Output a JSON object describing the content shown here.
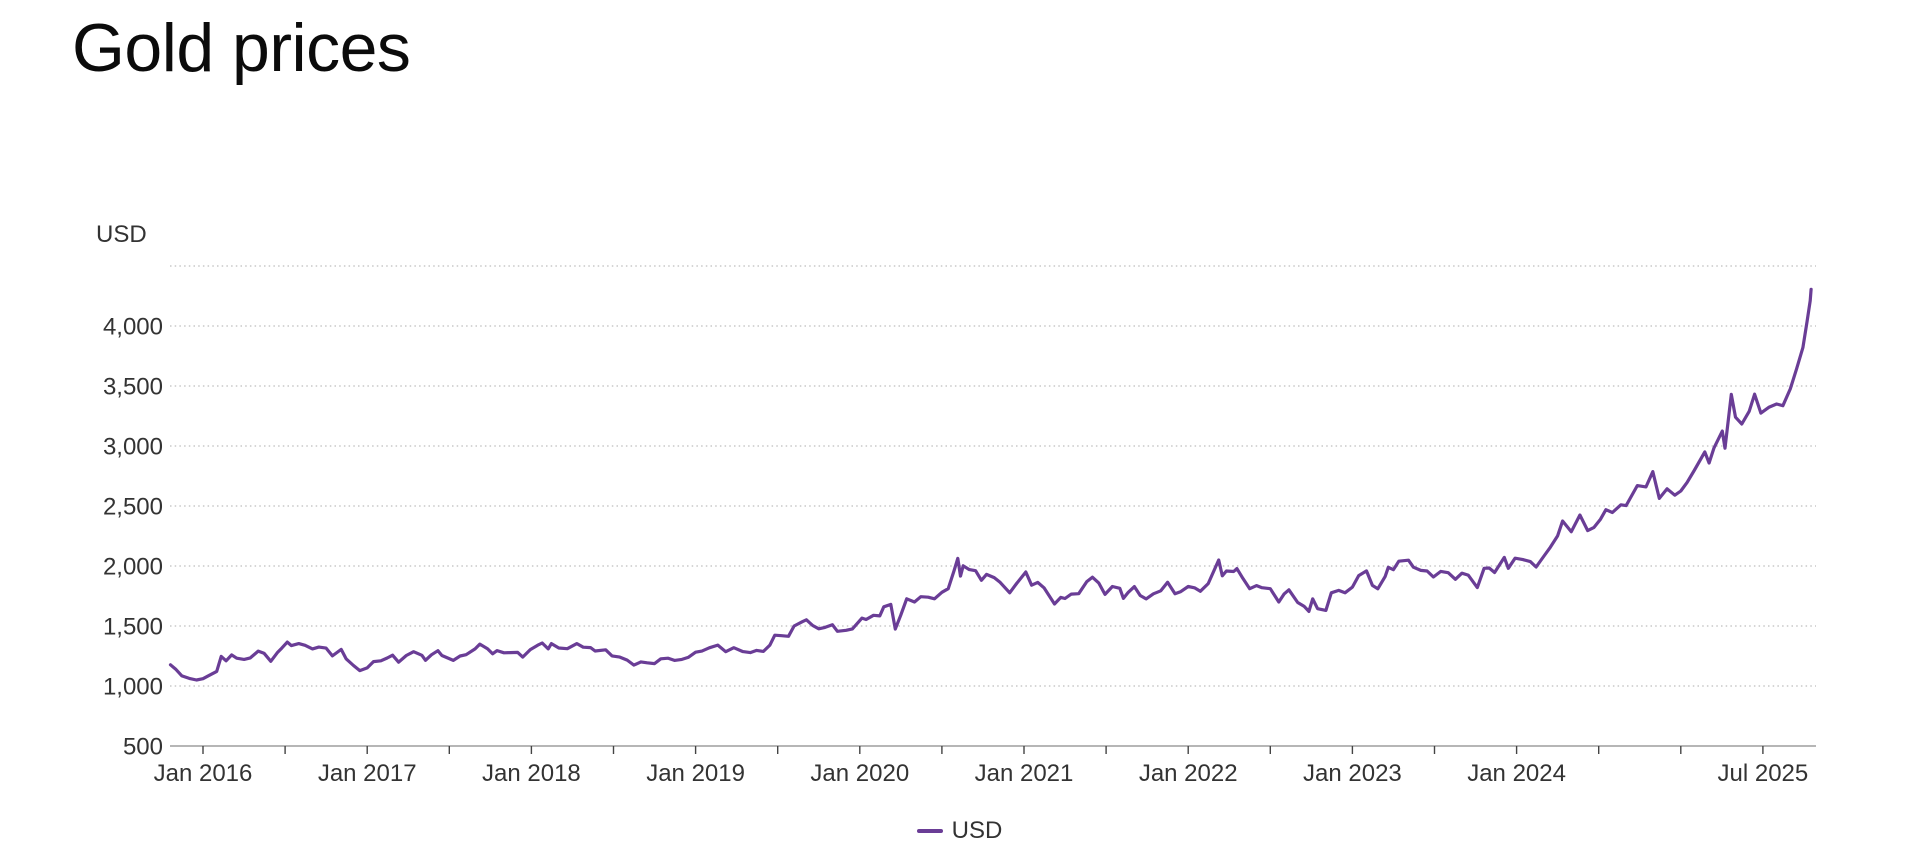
{
  "page": {
    "title": "Gold prices"
  },
  "axes": {
    "unit_label": "USD",
    "y_tick_labels": [
      {
        "label": "4,000",
        "value": 4000
      },
      {
        "label": "3,500",
        "value": 3500
      },
      {
        "label": "3,000",
        "value": 3000
      },
      {
        "label": "2,500",
        "value": 2500
      },
      {
        "label": "2,000",
        "value": 2000
      },
      {
        "label": "1,500",
        "value": 1500
      },
      {
        "label": "1,000",
        "value": 1000
      },
      {
        "label": "500",
        "value": 500
      }
    ],
    "x_tick_labels": [
      {
        "label": "Jan 2016",
        "date": "2016-01-01"
      },
      {
        "label": "Jan 2017",
        "date": "2017-01-01"
      },
      {
        "label": "Jan 2018",
        "date": "2018-01-01"
      },
      {
        "label": "Jan 2019",
        "date": "2019-01-01"
      },
      {
        "label": "Jan 2020",
        "date": "2020-01-01"
      },
      {
        "label": "Jan 2021",
        "date": "2021-01-01"
      },
      {
        "label": "Jan 2022",
        "date": "2022-01-01"
      },
      {
        "label": "Jan 2023",
        "date": "2023-01-01"
      },
      {
        "label": "Jan 2024",
        "date": "2024-01-01"
      },
      {
        "label": "Jul 2025",
        "date": "2025-07-01"
      }
    ]
  },
  "legend": {
    "label": "USD",
    "color": "#6a3d96"
  },
  "colors": {
    "line": "#6a3d96",
    "grid": "#bdbdbd",
    "axis_line": "#9e9e9e",
    "tick": "#444444",
    "label_text": "#333333",
    "title_text": "#0b0b0b"
  },
  "chart_data": {
    "type": "line",
    "title": "Gold prices",
    "xlabel": "",
    "ylabel": "USD",
    "ylim": [
      500,
      4500
    ],
    "grid": "dotted horizontal gridlines every 500, unlabeled top line at 4500, solid baseline at 500",
    "legend_position": "bottom-center",
    "legend_entries": [
      "USD"
    ],
    "x_range": [
      "2015-10-20",
      "2025-10-17"
    ],
    "minor_x_ticks": "every 6 months (Jan and Jul), 2016-01 through 2025-07",
    "series": [
      {
        "name": "USD",
        "color": "#6a3d96",
        "points": [
          [
            "2015-10-20",
            1177
          ],
          [
            "2015-11-01",
            1141
          ],
          [
            "2015-11-15",
            1084
          ],
          [
            "2015-12-01",
            1063
          ],
          [
            "2015-12-17",
            1050
          ],
          [
            "2016-01-01",
            1061
          ],
          [
            "2016-01-15",
            1089
          ],
          [
            "2016-02-01",
            1122
          ],
          [
            "2016-02-11",
            1247
          ],
          [
            "2016-02-22",
            1210
          ],
          [
            "2016-03-04",
            1259
          ],
          [
            "2016-03-15",
            1232
          ],
          [
            "2016-04-01",
            1222
          ],
          [
            "2016-04-15",
            1234
          ],
          [
            "2016-05-02",
            1291
          ],
          [
            "2016-05-15",
            1273
          ],
          [
            "2016-05-30",
            1206
          ],
          [
            "2016-06-15",
            1282
          ],
          [
            "2016-06-24",
            1316
          ],
          [
            "2016-07-06",
            1366
          ],
          [
            "2016-07-15",
            1337
          ],
          [
            "2016-08-01",
            1353
          ],
          [
            "2016-08-15",
            1339
          ],
          [
            "2016-09-01",
            1309
          ],
          [
            "2016-09-15",
            1324
          ],
          [
            "2016-10-01",
            1316
          ],
          [
            "2016-10-15",
            1251
          ],
          [
            "2016-11-04",
            1305
          ],
          [
            "2016-11-15",
            1227
          ],
          [
            "2016-12-01",
            1171
          ],
          [
            "2016-12-15",
            1128
          ],
          [
            "2017-01-01",
            1151
          ],
          [
            "2017-01-15",
            1203
          ],
          [
            "2017-02-01",
            1210
          ],
          [
            "2017-02-15",
            1233
          ],
          [
            "2017-02-27",
            1257
          ],
          [
            "2017-03-10",
            1198
          ],
          [
            "2017-03-27",
            1254
          ],
          [
            "2017-04-13",
            1286
          ],
          [
            "2017-05-01",
            1256
          ],
          [
            "2017-05-09",
            1214
          ],
          [
            "2017-05-22",
            1260
          ],
          [
            "2017-06-06",
            1294
          ],
          [
            "2017-06-15",
            1254
          ],
          [
            "2017-07-10",
            1213
          ],
          [
            "2017-07-25",
            1250
          ],
          [
            "2017-08-08",
            1261
          ],
          [
            "2017-08-28",
            1309
          ],
          [
            "2017-09-08",
            1349
          ],
          [
            "2017-09-25",
            1311
          ],
          [
            "2017-10-06",
            1268
          ],
          [
            "2017-10-16",
            1295
          ],
          [
            "2017-11-01",
            1277
          ],
          [
            "2017-11-15",
            1278
          ],
          [
            "2017-12-01",
            1280
          ],
          [
            "2017-12-12",
            1241
          ],
          [
            "2017-12-29",
            1303
          ],
          [
            "2018-01-15",
            1340
          ],
          [
            "2018-01-25",
            1358
          ],
          [
            "2018-02-08",
            1309
          ],
          [
            "2018-02-15",
            1353
          ],
          [
            "2018-03-01",
            1317
          ],
          [
            "2018-03-20",
            1311
          ],
          [
            "2018-04-11",
            1353
          ],
          [
            "2018-04-25",
            1323
          ],
          [
            "2018-05-11",
            1320
          ],
          [
            "2018-05-21",
            1292
          ],
          [
            "2018-06-14",
            1302
          ],
          [
            "2018-06-28",
            1251
          ],
          [
            "2018-07-15",
            1241
          ],
          [
            "2018-08-01",
            1216
          ],
          [
            "2018-08-16",
            1174
          ],
          [
            "2018-09-01",
            1201
          ],
          [
            "2018-09-15",
            1193
          ],
          [
            "2018-10-01",
            1187
          ],
          [
            "2018-10-15",
            1227
          ],
          [
            "2018-11-01",
            1232
          ],
          [
            "2018-11-15",
            1213
          ],
          [
            "2018-12-01",
            1222
          ],
          [
            "2018-12-15",
            1238
          ],
          [
            "2019-01-01",
            1282
          ],
          [
            "2019-01-15",
            1291
          ],
          [
            "2019-02-01",
            1318
          ],
          [
            "2019-02-20",
            1341
          ],
          [
            "2019-03-07",
            1286
          ],
          [
            "2019-03-25",
            1319
          ],
          [
            "2019-04-15",
            1287
          ],
          [
            "2019-05-01",
            1278
          ],
          [
            "2019-05-15",
            1297
          ],
          [
            "2019-05-30",
            1288
          ],
          [
            "2019-06-14",
            1341
          ],
          [
            "2019-06-25",
            1423
          ],
          [
            "2019-07-10",
            1419
          ],
          [
            "2019-07-25",
            1414
          ],
          [
            "2019-08-07",
            1500
          ],
          [
            "2019-08-26",
            1537
          ],
          [
            "2019-09-04",
            1552
          ],
          [
            "2019-09-18",
            1504
          ],
          [
            "2019-10-01",
            1477
          ],
          [
            "2019-10-15",
            1488
          ],
          [
            "2019-11-01",
            1511
          ],
          [
            "2019-11-12",
            1456
          ],
          [
            "2019-12-01",
            1464
          ],
          [
            "2019-12-15",
            1476
          ],
          [
            "2020-01-06",
            1566
          ],
          [
            "2020-01-15",
            1554
          ],
          [
            "2020-02-01",
            1589
          ],
          [
            "2020-02-15",
            1584
          ],
          [
            "2020-02-24",
            1660
          ],
          [
            "2020-03-09",
            1680
          ],
          [
            "2020-03-19",
            1474
          ],
          [
            "2020-04-01",
            1591
          ],
          [
            "2020-04-14",
            1727
          ],
          [
            "2020-05-01",
            1700
          ],
          [
            "2020-05-15",
            1744
          ],
          [
            "2020-06-01",
            1740
          ],
          [
            "2020-06-15",
            1727
          ],
          [
            "2020-07-01",
            1781
          ],
          [
            "2020-07-15",
            1811
          ],
          [
            "2020-07-28",
            1959
          ],
          [
            "2020-08-06",
            2063
          ],
          [
            "2020-08-12",
            1916
          ],
          [
            "2020-08-18",
            2002
          ],
          [
            "2020-09-01",
            1970
          ],
          [
            "2020-09-15",
            1961
          ],
          [
            "2020-09-28",
            1881
          ],
          [
            "2020-10-09",
            1930
          ],
          [
            "2020-10-26",
            1903
          ],
          [
            "2020-11-09",
            1863
          ],
          [
            "2020-11-30",
            1777
          ],
          [
            "2020-12-15",
            1854
          ],
          [
            "2021-01-05",
            1950
          ],
          [
            "2021-01-18",
            1840
          ],
          [
            "2021-02-01",
            1863
          ],
          [
            "2021-02-15",
            1818
          ],
          [
            "2021-03-08",
            1683
          ],
          [
            "2021-03-22",
            1738
          ],
          [
            "2021-04-01",
            1729
          ],
          [
            "2021-04-15",
            1766
          ],
          [
            "2021-05-01",
            1769
          ],
          [
            "2021-05-19",
            1870
          ],
          [
            "2021-06-01",
            1907
          ],
          [
            "2021-06-15",
            1859
          ],
          [
            "2021-06-29",
            1763
          ],
          [
            "2021-07-15",
            1829
          ],
          [
            "2021-08-01",
            1814
          ],
          [
            "2021-08-09",
            1730
          ],
          [
            "2021-08-20",
            1781
          ],
          [
            "2021-09-03",
            1828
          ],
          [
            "2021-09-16",
            1754
          ],
          [
            "2021-09-29",
            1726
          ],
          [
            "2021-10-15",
            1768
          ],
          [
            "2021-11-01",
            1793
          ],
          [
            "2021-11-16",
            1864
          ],
          [
            "2021-12-02",
            1769
          ],
          [
            "2021-12-15",
            1787
          ],
          [
            "2022-01-01",
            1829
          ],
          [
            "2022-01-15",
            1818
          ],
          [
            "2022-01-28",
            1789
          ],
          [
            "2022-02-15",
            1853
          ],
          [
            "2022-03-08",
            2050
          ],
          [
            "2022-03-16",
            1918
          ],
          [
            "2022-03-25",
            1958
          ],
          [
            "2022-04-11",
            1954
          ],
          [
            "2022-04-18",
            1978
          ],
          [
            "2022-05-01",
            1897
          ],
          [
            "2022-05-16",
            1811
          ],
          [
            "2022-06-01",
            1837
          ],
          [
            "2022-06-13",
            1819
          ],
          [
            "2022-07-01",
            1811
          ],
          [
            "2022-07-20",
            1700
          ],
          [
            "2022-08-01",
            1766
          ],
          [
            "2022-08-12",
            1802
          ],
          [
            "2022-09-01",
            1696
          ],
          [
            "2022-09-15",
            1665
          ],
          [
            "2022-09-26",
            1622
          ],
          [
            "2022-10-04",
            1726
          ],
          [
            "2022-10-15",
            1644
          ],
          [
            "2022-11-03",
            1630
          ],
          [
            "2022-11-15",
            1777
          ],
          [
            "2022-12-01",
            1797
          ],
          [
            "2022-12-15",
            1777
          ],
          [
            "2023-01-01",
            1824
          ],
          [
            "2023-01-15",
            1920
          ],
          [
            "2023-02-02",
            1959
          ],
          [
            "2023-02-15",
            1838
          ],
          [
            "2023-02-27",
            1810
          ],
          [
            "2023-03-13",
            1913
          ],
          [
            "2023-03-20",
            1989
          ],
          [
            "2023-04-01",
            1969
          ],
          [
            "2023-04-13",
            2040
          ],
          [
            "2023-05-04",
            2048
          ],
          [
            "2023-05-15",
            1990
          ],
          [
            "2023-06-01",
            1963
          ],
          [
            "2023-06-15",
            1958
          ],
          [
            "2023-06-29",
            1908
          ],
          [
            "2023-07-15",
            1955
          ],
          [
            "2023-08-01",
            1944
          ],
          [
            "2023-08-17",
            1889
          ],
          [
            "2023-09-01",
            1940
          ],
          [
            "2023-09-15",
            1924
          ],
          [
            "2023-10-05",
            1820
          ],
          [
            "2023-10-20",
            1981
          ],
          [
            "2023-11-01",
            1983
          ],
          [
            "2023-11-13",
            1946
          ],
          [
            "2023-12-04",
            2072
          ],
          [
            "2023-12-13",
            1981
          ],
          [
            "2023-12-28",
            2065
          ],
          [
            "2024-01-15",
            2053
          ],
          [
            "2024-02-01",
            2037
          ],
          [
            "2024-02-14",
            1992
          ],
          [
            "2024-03-01",
            2083
          ],
          [
            "2024-03-15",
            2156
          ],
          [
            "2024-04-01",
            2251
          ],
          [
            "2024-04-12",
            2375
          ],
          [
            "2024-05-01",
            2286
          ],
          [
            "2024-05-20",
            2425
          ],
          [
            "2024-06-07",
            2295
          ],
          [
            "2024-06-21",
            2322
          ],
          [
            "2024-07-05",
            2390
          ],
          [
            "2024-07-17",
            2469
          ],
          [
            "2024-08-01",
            2446
          ],
          [
            "2024-08-20",
            2510
          ],
          [
            "2024-09-01",
            2503
          ],
          [
            "2024-09-26",
            2670
          ],
          [
            "2024-10-15",
            2659
          ],
          [
            "2024-10-30",
            2787
          ],
          [
            "2024-11-14",
            2563
          ],
          [
            "2024-12-01",
            2643
          ],
          [
            "2024-12-18",
            2590
          ],
          [
            "2025-01-01",
            2625
          ],
          [
            "2025-01-15",
            2697
          ],
          [
            "2025-02-01",
            2800
          ],
          [
            "2025-02-24",
            2951
          ],
          [
            "2025-03-03",
            2858
          ],
          [
            "2025-03-14",
            2984
          ],
          [
            "2025-04-02",
            3124
          ],
          [
            "2025-04-08",
            2982
          ],
          [
            "2025-04-22",
            3430
          ],
          [
            "2025-05-01",
            3240
          ],
          [
            "2025-05-15",
            3183
          ],
          [
            "2025-06-01",
            3289
          ],
          [
            "2025-06-13",
            3432
          ],
          [
            "2025-06-27",
            3274
          ],
          [
            "2025-07-15",
            3324
          ],
          [
            "2025-08-01",
            3350
          ],
          [
            "2025-08-15",
            3336
          ],
          [
            "2025-09-01",
            3476
          ],
          [
            "2025-09-15",
            3643
          ],
          [
            "2025-09-29",
            3820
          ],
          [
            "2025-10-08",
            4040
          ],
          [
            "2025-10-15",
            4210
          ],
          [
            "2025-10-17",
            4306
          ]
        ]
      }
    ]
  }
}
